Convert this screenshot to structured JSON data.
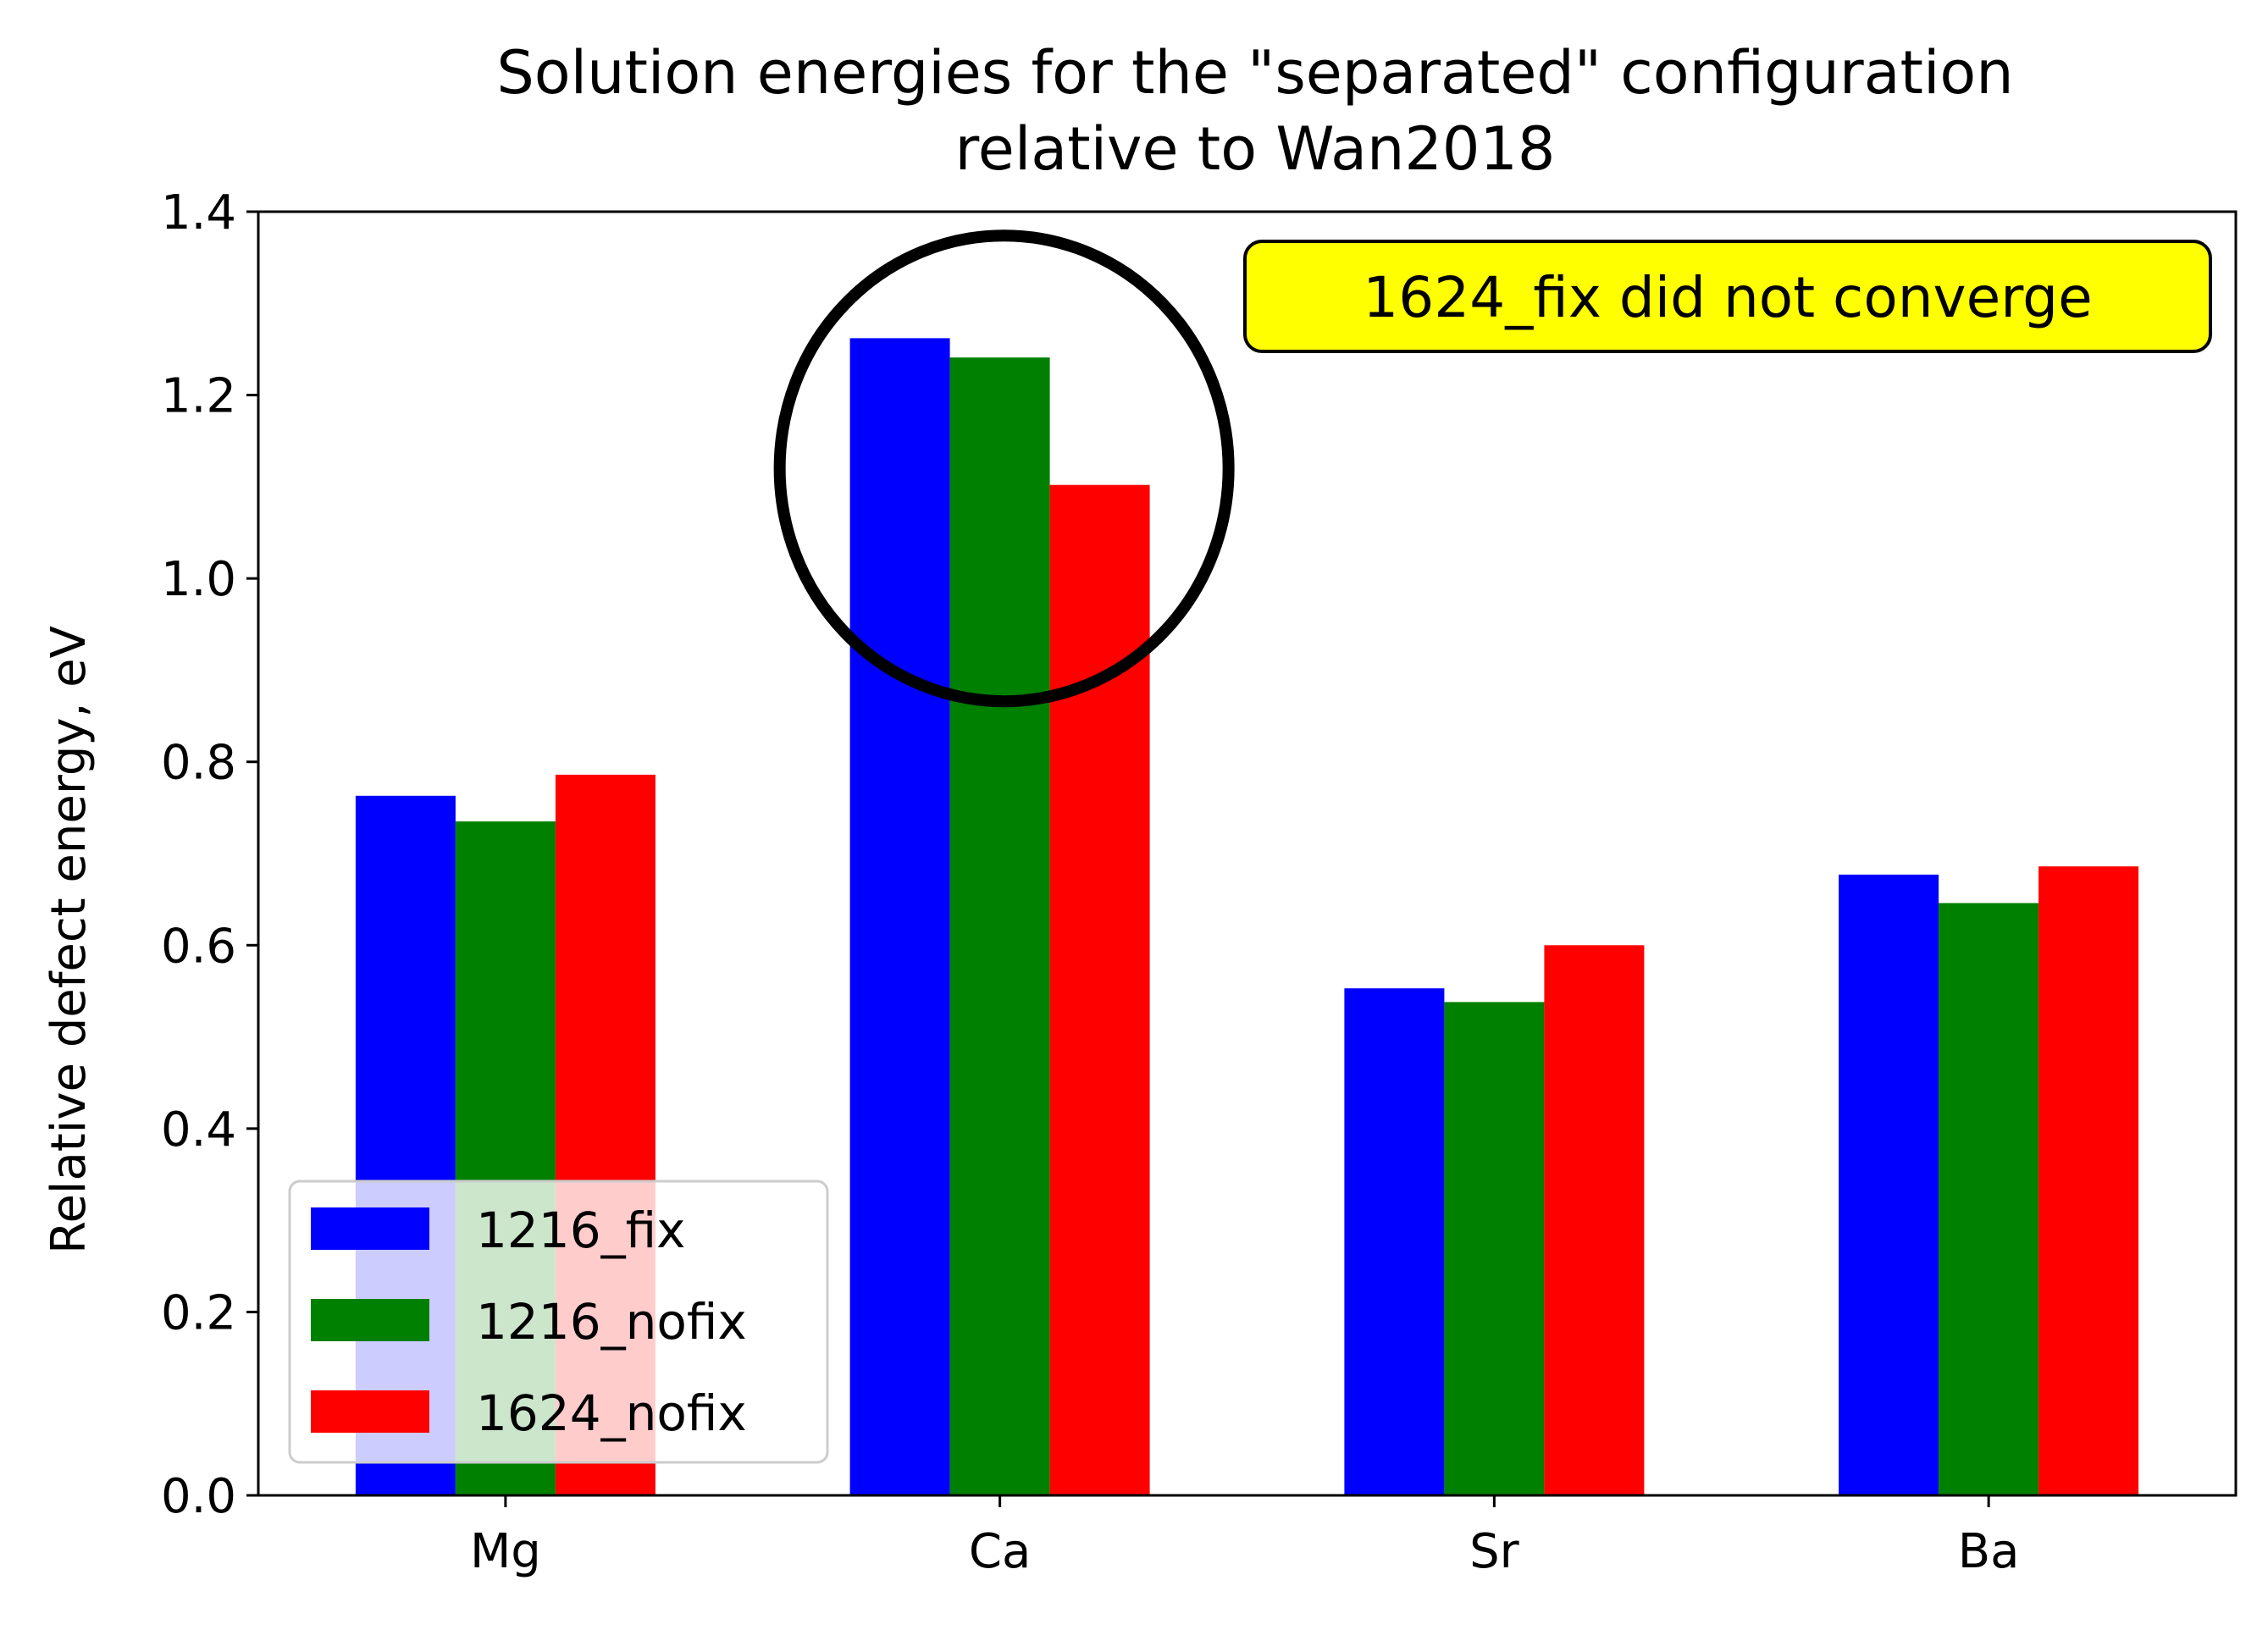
{
  "chart_data": {
    "type": "bar",
    "title": "Solution energies for the \"separated\" configuration\nrelative to Wan2018",
    "title_lines": [
      "Solution energies for the \"separated\" configuration",
      "relative to Wan2018"
    ],
    "xlabel": "",
    "ylabel": "Relative defect energy, eV",
    "categories": [
      "Mg",
      "Ca",
      "Sr",
      "Ba"
    ],
    "ylim": [
      0.0,
      1.4
    ],
    "yticks": [
      "0.0",
      "0.2",
      "0.4",
      "0.6",
      "0.8",
      "1.0",
      "1.2",
      "1.4"
    ],
    "grid": false,
    "legend_position": "lower-left",
    "series": [
      {
        "name": "1216_fix",
        "color": "#0000ff",
        "values": [
          0.763,
          1.262,
          0.553,
          0.677
        ]
      },
      {
        "name": "1216_nofix",
        "color": "#008000",
        "values": [
          0.735,
          1.241,
          0.538,
          0.646
        ]
      },
      {
        "name": "1624_nofix",
        "color": "#ff0000",
        "values": [
          0.786,
          1.102,
          0.6,
          0.686
        ]
      }
    ],
    "annotations": [
      {
        "text": "1624_fix did not converge",
        "background": "#ffff00",
        "position": "top-right"
      }
    ],
    "highlight": {
      "shape": "circle",
      "category": "Ca",
      "center_y": 1.12,
      "color": "#000000"
    }
  }
}
